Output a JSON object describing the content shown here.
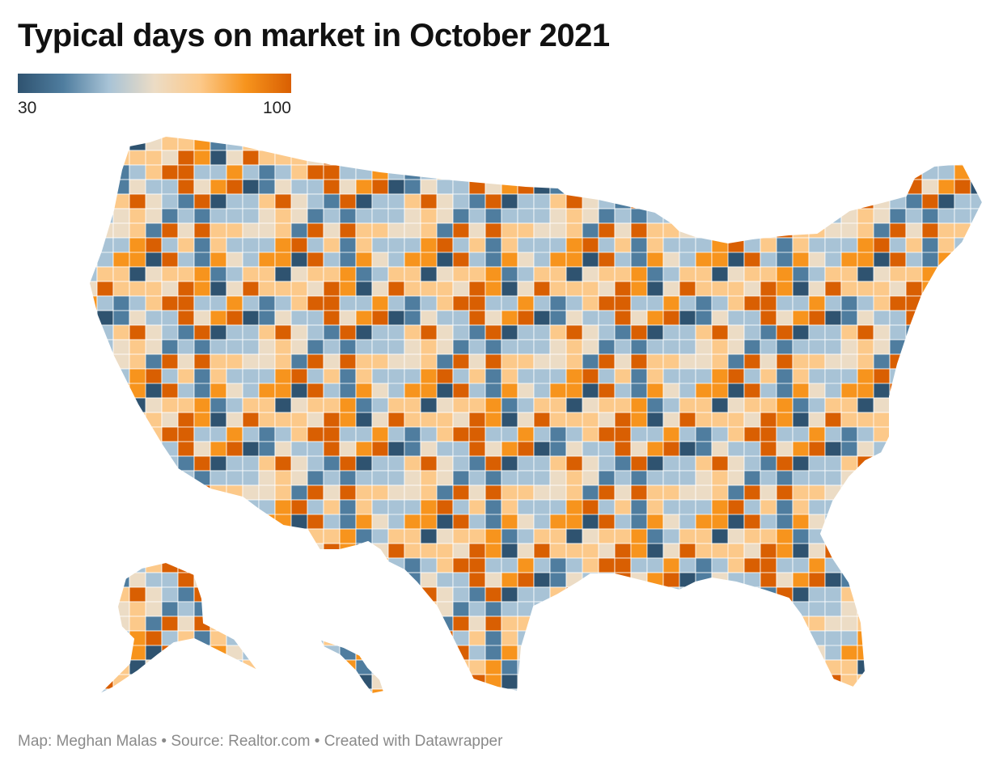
{
  "title": "Typical days on market in October 2021",
  "legend": {
    "min_label": "30",
    "max_label": "100",
    "min_value": 30,
    "max_value": 100,
    "color_stops": [
      "#2f5370",
      "#4f7d9f",
      "#a8c3d6",
      "#ecdcc5",
      "#fcc98a",
      "#f7941d",
      "#d95f02"
    ]
  },
  "map": {
    "region": "United States by county",
    "measure": "Typical days on market",
    "period": "October 2021",
    "border_color": "#ffffff",
    "state_border_color": "#ffffff",
    "no_data_color": "#d9d9d9"
  },
  "footer": {
    "text": "Map: Meghan Malas • Source: Realtor.com • Created with Datawrapper"
  }
}
